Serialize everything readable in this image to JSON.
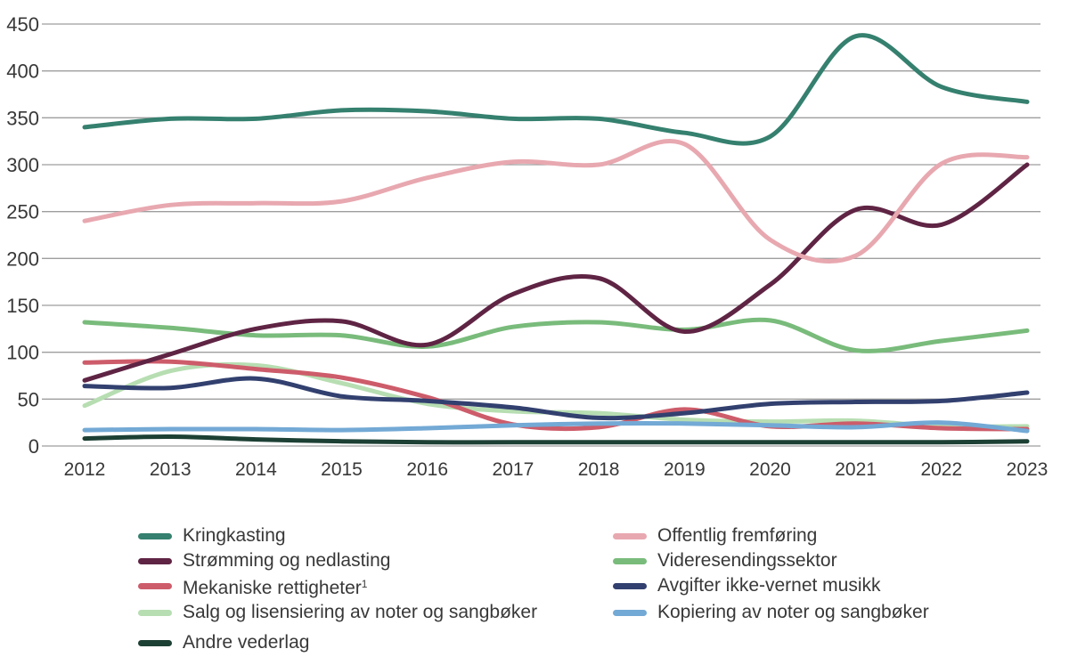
{
  "page": {
    "background": "#ffffff",
    "text_color": "#383838",
    "grid_color": "#9e9e9e"
  },
  "chart_data": {
    "type": "line",
    "title": "",
    "xlabel": "",
    "ylabel": "",
    "x": [
      "2012",
      "2013",
      "2014",
      "2015",
      "2016",
      "2017",
      "2018",
      "2019",
      "2020",
      "2021",
      "2022",
      "2023"
    ],
    "ylim": [
      0,
      450
    ],
    "ytick_step": 50,
    "yticks": [
      0,
      50,
      100,
      150,
      200,
      250,
      300,
      350,
      400,
      450
    ],
    "grid": "horizontal",
    "legend_position": "bottom-two-columns",
    "series": [
      {
        "name": "Kringkasting",
        "sup": "",
        "color": "#35806f",
        "legend": "left",
        "z": 7,
        "values": [
          340,
          349,
          349,
          358,
          357,
          349,
          349,
          334,
          330,
          437,
          383,
          367
        ]
      },
      {
        "name": "Strømming og nedlasting",
        "sup": "",
        "color": "#5f2444",
        "legend": "left",
        "z": 4,
        "values": [
          70,
          98,
          125,
          133,
          108,
          162,
          179,
          122,
          172,
          252,
          236,
          300
        ]
      },
      {
        "name": "Mekaniske rettigheter",
        "sup": "1",
        "color": "#cd5c6a",
        "legend": "left",
        "z": 1,
        "values": [
          89,
          90,
          82,
          73,
          52,
          23,
          20,
          39,
          21,
          24,
          19,
          18
        ]
      },
      {
        "name": "Salg og lisensiering av noter og sangbøker",
        "sup": "",
        "color": "#b7deb2",
        "legend": "left",
        "z": 0,
        "values": [
          43,
          80,
          86,
          67,
          45,
          37,
          35,
          28,
          26,
          27,
          21,
          21
        ]
      },
      {
        "name": "Andre vederlag",
        "sup": "",
        "color": "#1d4035",
        "legend": "left",
        "z": 8,
        "values": [
          8,
          10,
          7,
          5,
          4,
          4,
          4,
          4,
          4,
          4,
          4,
          5
        ]
      },
      {
        "name": "Offentlig fremføring",
        "sup": "",
        "color": "#e8a8b0",
        "legend": "right",
        "z": 5,
        "values": [
          240,
          257,
          259,
          261,
          286,
          303,
          300,
          322,
          220,
          203,
          301,
          308
        ]
      },
      {
        "name": "Videresendingssektor",
        "sup": "",
        "color": "#79bb7b",
        "legend": "right",
        "z": 3,
        "values": [
          132,
          126,
          118,
          118,
          106,
          127,
          132,
          124,
          134,
          102,
          112,
          123
        ]
      },
      {
        "name": "Avgifter ikke-vernet musikk",
        "sup": "",
        "color": "#32406f",
        "legend": "right",
        "z": 2,
        "values": [
          64,
          62,
          72,
          53,
          48,
          41,
          30,
          35,
          45,
          47,
          48,
          57
        ]
      },
      {
        "name": "Kopiering av noter og sangbøker",
        "sup": "",
        "color": "#73a9d5",
        "legend": "right",
        "z": 6,
        "values": [
          17,
          18,
          18,
          17,
          19,
          22,
          24,
          24,
          22,
          20,
          25,
          16
        ]
      }
    ]
  }
}
